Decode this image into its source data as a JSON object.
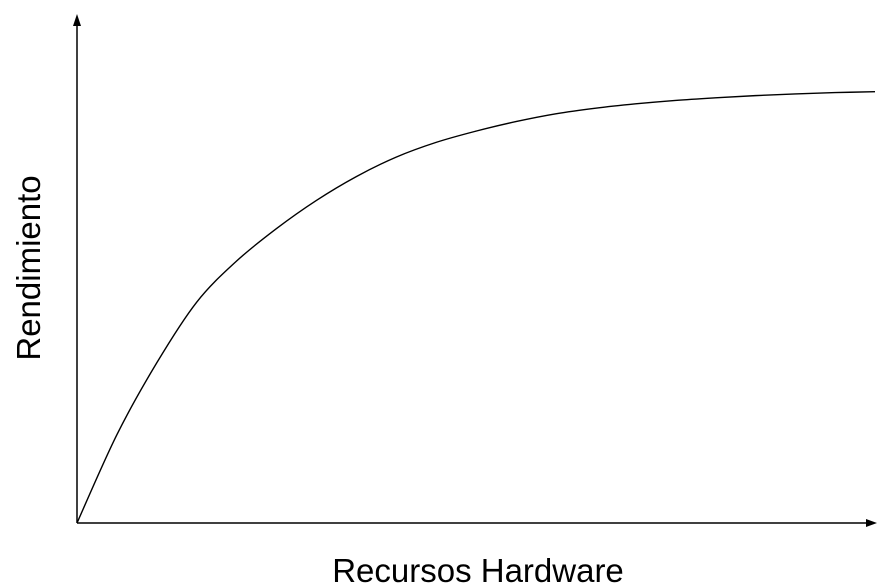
{
  "chart_data": {
    "type": "line",
    "title": "",
    "xlabel": "Recursos Hardware",
    "ylabel": "Rendimiento",
    "xlim": [
      0,
      1
    ],
    "ylim": [
      0,
      1
    ],
    "grid": false,
    "legend": "none",
    "x_ticks_labeled": false,
    "y_ticks_labeled": false,
    "series": [
      {
        "color": "#000000",
        "x": [
          0,
          0.05,
          0.1,
          0.15,
          0.2,
          0.25,
          0.3,
          0.35,
          0.4,
          0.45,
          0.5,
          0.55,
          0.6,
          0.65,
          0.7,
          0.75,
          0.8,
          0.85,
          0.9,
          0.95,
          1.0
        ],
        "y": [
          0,
          0.204,
          0.37,
          0.51,
          0.605,
          0.68,
          0.745,
          0.8,
          0.845,
          0.879,
          0.905,
          0.927,
          0.945,
          0.958,
          0.968,
          0.976,
          0.982,
          0.987,
          0.991,
          0.994,
          0.996
        ]
      }
    ]
  },
  "colors": {
    "axis": "#000000",
    "background": "#ffffff"
  }
}
